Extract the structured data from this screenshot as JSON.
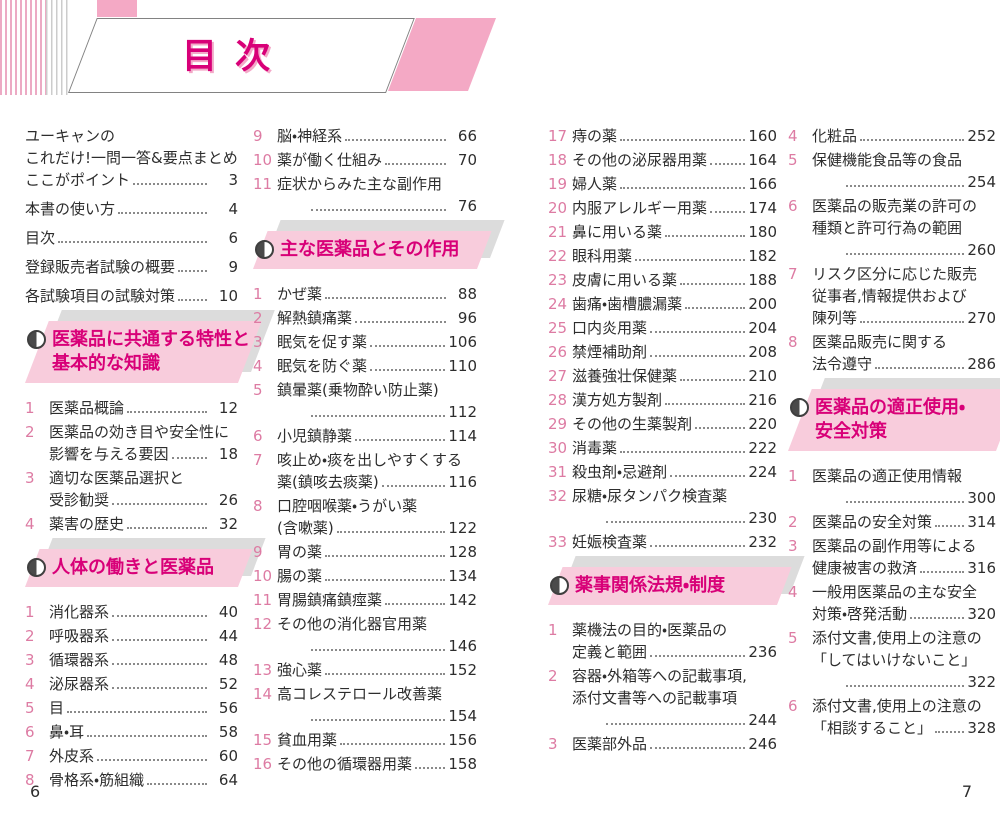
{
  "banner": {
    "title": "目次"
  },
  "footer": {
    "left_page": "6",
    "right_page": "7"
  },
  "icons": {
    "section_bullet": "half-filled-circle-icon"
  },
  "colors": {
    "accent_magenta": "#d80078",
    "number_pink": "#dd7ba3",
    "decoration_pink": "#f4a9c5",
    "section_bg_pink": "#f8ccdc",
    "section_shadow_gray": "#dcdcdc",
    "text": "#2d2d2d"
  },
  "columns": [
    {
      "blocks": [
        {
          "type": "front",
          "items": [
            {
              "lines": [
                "ユーキャンの",
                "これだけ!一問一答&要点まとめ",
                "ここがポイント"
              ],
              "page": "3"
            },
            {
              "lines": [
                "本書の使い方"
              ],
              "page": "4"
            },
            {
              "lines": [
                "目次"
              ],
              "page": "6"
            },
            {
              "lines": [
                "登録販売者試験の概要"
              ],
              "page": "9"
            },
            {
              "lines": [
                "各試験項目の試験対策"
              ],
              "page": "10"
            }
          ]
        },
        {
          "type": "section",
          "title_lines": [
            "医薬品に共通する特性と",
            "基本的な知識"
          ]
        },
        {
          "type": "items",
          "items": [
            {
              "num": "1",
              "lines": [
                "医薬品概論"
              ],
              "page": "12"
            },
            {
              "num": "2",
              "lines": [
                "医薬品の効き目や安全性に",
                "影響を与える要因"
              ],
              "page": "18"
            },
            {
              "num": "3",
              "lines": [
                "適切な医薬品選択と",
                "受診勧奨"
              ],
              "page": "26"
            },
            {
              "num": "4",
              "lines": [
                "薬害の歴史"
              ],
              "page": "32"
            }
          ]
        },
        {
          "type": "section",
          "title_lines": [
            "人体の働きと医薬品"
          ]
        },
        {
          "type": "items",
          "items": [
            {
              "num": "1",
              "lines": [
                "消化器系"
              ],
              "page": "40"
            },
            {
              "num": "2",
              "lines": [
                "呼吸器系"
              ],
              "page": "44"
            },
            {
              "num": "3",
              "lines": [
                "循環器系"
              ],
              "page": "48"
            },
            {
              "num": "4",
              "lines": [
                "泌尿器系"
              ],
              "page": "52"
            },
            {
              "num": "5",
              "lines": [
                "目"
              ],
              "page": "56"
            },
            {
              "num": "6",
              "lines": [
                "鼻・耳"
              ],
              "page": "58"
            },
            {
              "num": "7",
              "lines": [
                "外皮系"
              ],
              "page": "60"
            },
            {
              "num": "8",
              "lines": [
                "骨格系・筋組織"
              ],
              "page": "64"
            }
          ]
        }
      ]
    },
    {
      "blocks": [
        {
          "type": "items",
          "items": [
            {
              "num": "9",
              "lines": [
                "脳・神経系"
              ],
              "page": "66"
            },
            {
              "num": "10",
              "lines": [
                "薬が働く仕組み"
              ],
              "page": "70"
            },
            {
              "num": "11",
              "lines": [
                "症状からみた主な副作用",
                ""
              ],
              "page": "76"
            }
          ]
        },
        {
          "type": "section",
          "title_lines": [
            "主な医薬品とその作用"
          ]
        },
        {
          "type": "items",
          "items": [
            {
              "num": "1",
              "lines": [
                "かぜ薬"
              ],
              "page": "88"
            },
            {
              "num": "2",
              "lines": [
                "解熱鎮痛薬"
              ],
              "page": "96"
            },
            {
              "num": "3",
              "lines": [
                "眠気を促す薬"
              ],
              "page": "106"
            },
            {
              "num": "4",
              "lines": [
                "眠気を防ぐ薬"
              ],
              "page": "110"
            },
            {
              "num": "5",
              "lines": [
                "鎮暈薬(乗物酔い防止薬)",
                ""
              ],
              "page": "112"
            },
            {
              "num": "6",
              "lines": [
                "小児鎮静薬"
              ],
              "page": "114"
            },
            {
              "num": "7",
              "lines": [
                "咳止め・痰を出しやすくする",
                "薬(鎮咳去痰薬)"
              ],
              "page": "116"
            },
            {
              "num": "8",
              "lines": [
                "口腔咽喉薬・うがい薬",
                "(含嗽薬)"
              ],
              "page": "122"
            },
            {
              "num": "9",
              "lines": [
                "胃の薬"
              ],
              "page": "128"
            },
            {
              "num": "10",
              "lines": [
                "腸の薬"
              ],
              "page": "134"
            },
            {
              "num": "11",
              "lines": [
                "胃腸鎮痛鎮痙薬"
              ],
              "page": "142"
            },
            {
              "num": "12",
              "lines": [
                "その他の消化器官用薬",
                ""
              ],
              "page": "146"
            },
            {
              "num": "13",
              "lines": [
                "強心薬"
              ],
              "page": "152"
            },
            {
              "num": "14",
              "lines": [
                "高コレステロール改善薬",
                ""
              ],
              "page": "154"
            },
            {
              "num": "15",
              "lines": [
                "貧血用薬"
              ],
              "page": "156"
            },
            {
              "num": "16",
              "lines": [
                "その他の循環器用薬"
              ],
              "page": "158"
            }
          ]
        }
      ]
    },
    {
      "blocks": [
        {
          "type": "items",
          "items": [
            {
              "num": "17",
              "lines": [
                "痔の薬"
              ],
              "page": "160"
            },
            {
              "num": "18",
              "lines": [
                "その他の泌尿器用薬"
              ],
              "page": "164"
            },
            {
              "num": "19",
              "lines": [
                "婦人薬"
              ],
              "page": "166"
            },
            {
              "num": "20",
              "lines": [
                "内服アレルギー用薬"
              ],
              "page": "174"
            },
            {
              "num": "21",
              "lines": [
                "鼻に用いる薬"
              ],
              "page": "180"
            },
            {
              "num": "22",
              "lines": [
                "眼科用薬"
              ],
              "page": "182"
            },
            {
              "num": "23",
              "lines": [
                "皮膚に用いる薬"
              ],
              "page": "188"
            },
            {
              "num": "24",
              "lines": [
                "歯痛・歯槽膿漏薬"
              ],
              "page": "200"
            },
            {
              "num": "25",
              "lines": [
                "口内炎用薬"
              ],
              "page": "204"
            },
            {
              "num": "26",
              "lines": [
                "禁煙補助剤"
              ],
              "page": "208"
            },
            {
              "num": "27",
              "lines": [
                "滋養強壮保健薬"
              ],
              "page": "210"
            },
            {
              "num": "28",
              "lines": [
                "漢方処方製剤"
              ],
              "page": "216"
            },
            {
              "num": "29",
              "lines": [
                "その他の生薬製剤"
              ],
              "page": "220"
            },
            {
              "num": "30",
              "lines": [
                "消毒薬"
              ],
              "page": "222"
            },
            {
              "num": "31",
              "lines": [
                "殺虫剤・忌避剤"
              ],
              "page": "224"
            },
            {
              "num": "32",
              "lines": [
                "尿糖・尿タンパク検査薬",
                ""
              ],
              "page": "230"
            },
            {
              "num": "33",
              "lines": [
                "妊娠検査薬"
              ],
              "page": "232"
            }
          ]
        },
        {
          "type": "section",
          "title_lines": [
            "薬事関係法規・制度"
          ]
        },
        {
          "type": "items",
          "items": [
            {
              "num": "1",
              "lines": [
                "薬機法の目的・医薬品の",
                "定義と範囲"
              ],
              "page": "236"
            },
            {
              "num": "2",
              "lines": [
                "容器・外箱等への記載事項,",
                "添付文書等への記載事項",
                ""
              ],
              "page": "244"
            },
            {
              "num": "3",
              "lines": [
                "医薬部外品"
              ],
              "page": "246"
            }
          ]
        }
      ]
    },
    {
      "blocks": [
        {
          "type": "items",
          "items": [
            {
              "num": "4",
              "lines": [
                "化粧品"
              ],
              "page": "252"
            },
            {
              "num": "5",
              "lines": [
                "保健機能食品等の食品",
                ""
              ],
              "page": "254"
            },
            {
              "num": "6",
              "lines": [
                "医薬品の販売業の許可の",
                "種類と許可行為の範囲",
                ""
              ],
              "page": "260"
            },
            {
              "num": "7",
              "lines": [
                "リスク区分に応じた販売",
                "従事者,情報提供および",
                "陳列等"
              ],
              "page": "270"
            },
            {
              "num": "8",
              "lines": [
                "医薬品販売に関する",
                "法令遵守"
              ],
              "page": "286"
            }
          ]
        },
        {
          "type": "section",
          "title_lines": [
            "医薬品の適正使用・",
            "安全対策"
          ]
        },
        {
          "type": "items",
          "items": [
            {
              "num": "1",
              "lines": [
                "医薬品の適正使用情報",
                ""
              ],
              "page": "300"
            },
            {
              "num": "2",
              "lines": [
                "医薬品の安全対策"
              ],
              "page": "314"
            },
            {
              "num": "3",
              "lines": [
                "医薬品の副作用等による",
                "健康被害の救済"
              ],
              "page": "316"
            },
            {
              "num": "4",
              "lines": [
                "一般用医薬品の主な安全",
                "対策・啓発活動"
              ],
              "page": "320"
            },
            {
              "num": "5",
              "lines": [
                "添付文書,使用上の注意の",
                "「してはいけないこと」",
                ""
              ],
              "page": "322"
            },
            {
              "num": "6",
              "lines": [
                "添付文書,使用上の注意の",
                "「相談すること」"
              ],
              "page": "328"
            }
          ]
        }
      ]
    }
  ]
}
